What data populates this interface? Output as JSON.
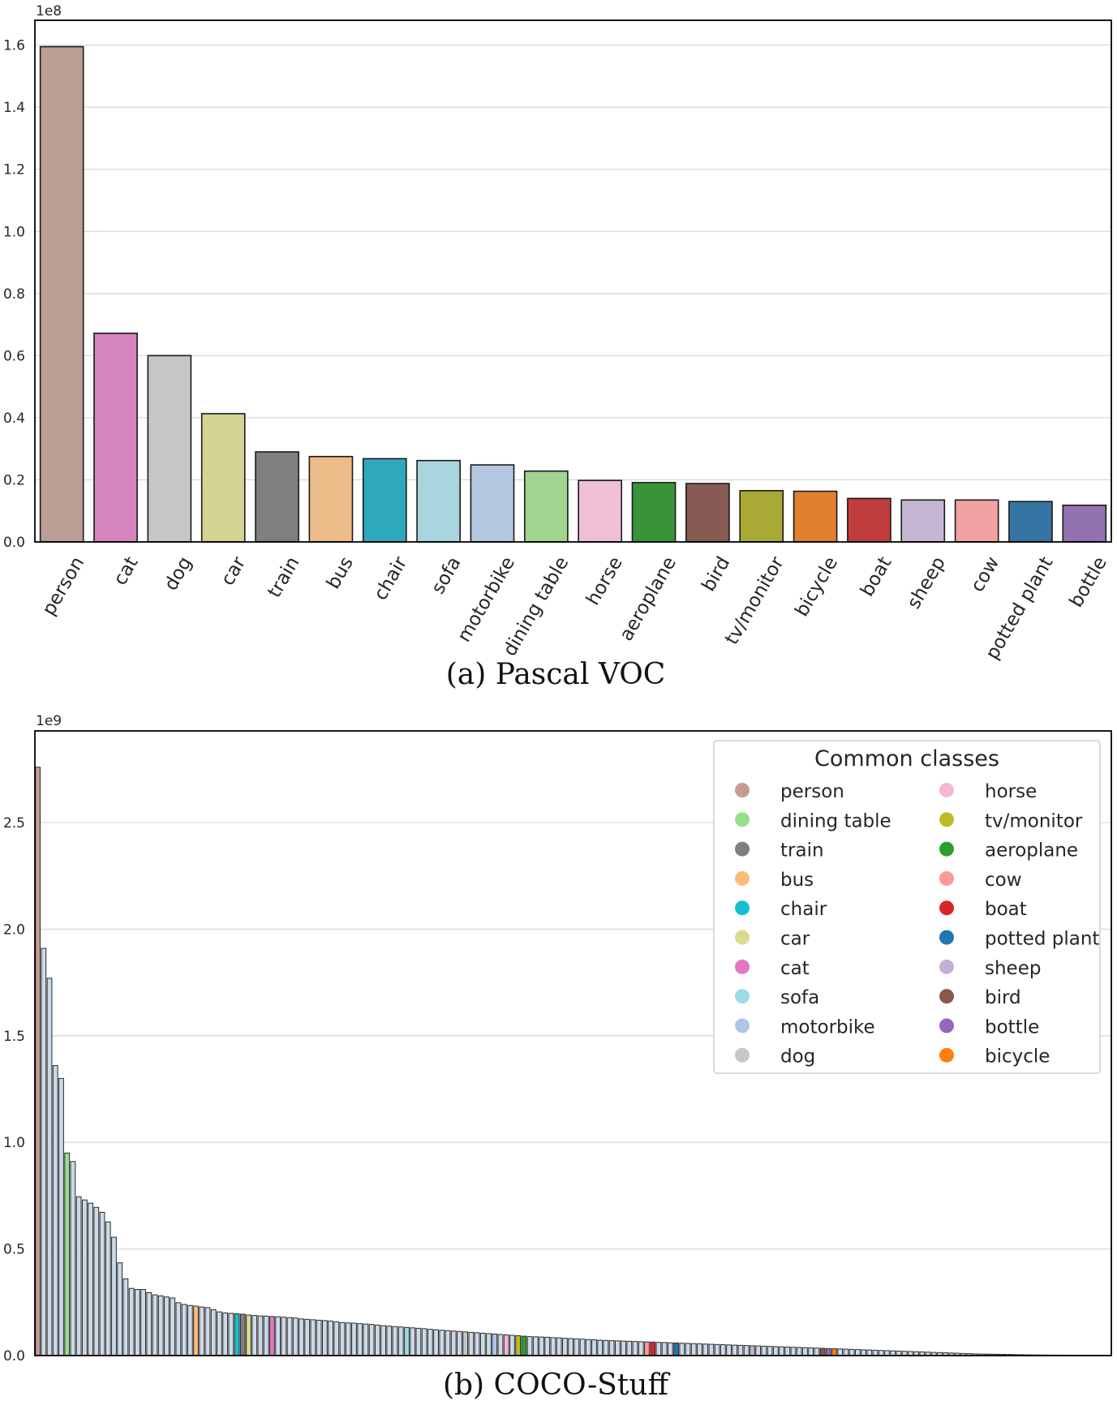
{
  "chart_data": [
    {
      "type": "bar",
      "caption": "(a) Pascal VOC",
      "multiplier_label": "1e8",
      "ylim": [
        0,
        1.68
      ],
      "yticks": [
        0.0,
        0.2,
        0.4,
        0.6,
        0.8,
        1.0,
        1.2,
        1.4,
        1.6
      ],
      "ytick_labels": [
        "0.0",
        "0.2",
        "0.4",
        "0.6",
        "0.8",
        "1.0",
        "1.2",
        "1.4",
        "1.6"
      ],
      "grid": true,
      "categories": [
        "person",
        "cat",
        "dog",
        "car",
        "train",
        "bus",
        "chair",
        "sofa",
        "motorbike",
        "dining table",
        "horse",
        "aeroplane",
        "bird",
        "tv/monitor",
        "bicycle",
        "boat",
        "sheep",
        "cow",
        "potted plant",
        "bottle"
      ],
      "values": [
        1.595,
        0.672,
        0.6,
        0.413,
        0.29,
        0.275,
        0.268,
        0.262,
        0.248,
        0.228,
        0.198,
        0.191,
        0.188,
        0.165,
        0.163,
        0.14,
        0.135,
        0.135,
        0.13,
        0.118
      ],
      "colors": [
        "#bc9d96",
        "#d584be",
        "#c6c6c6",
        "#d4d494",
        "#7f7f7f",
        "#ecbc89",
        "#2ea9bc",
        "#a9d5de",
        "#b5c8e1",
        "#a1d58f",
        "#eebfd5",
        "#399339",
        "#855b53",
        "#a9a935",
        "#e1812f",
        "#c13c3d",
        "#c5b6d3",
        "#f2a2a2",
        "#3574a3",
        "#9272b0"
      ]
    },
    {
      "type": "bar",
      "caption": "(b) COCO-Stuff",
      "multiplier_label": "1e9",
      "ylim": [
        0,
        2.93
      ],
      "yticks": [
        0.0,
        0.5,
        1.0,
        1.5,
        2.0,
        2.5
      ],
      "ytick_labels": [
        "0.0",
        "0.5",
        "1.0",
        "1.5",
        "2.0",
        "2.5"
      ],
      "grid": true,
      "num_categories": 182,
      "x_tick_labels": "none",
      "values": [
        2.76,
        1.91,
        1.77,
        1.36,
        1.3,
        0.95,
        0.91,
        0.745,
        0.73,
        0.715,
        0.695,
        0.672,
        0.627,
        0.555,
        0.435,
        0.36,
        0.315,
        0.31,
        0.31,
        0.295,
        0.285,
        0.28,
        0.275,
        0.27,
        0.248,
        0.24,
        0.235,
        0.232,
        0.228,
        0.225,
        0.215,
        0.205,
        0.2,
        0.198,
        0.196,
        0.194,
        0.19,
        0.188,
        0.186,
        0.185,
        0.183,
        0.182,
        0.18,
        0.178,
        0.176,
        0.172,
        0.17,
        0.168,
        0.166,
        0.164,
        0.162,
        0.158,
        0.155,
        0.153,
        0.152,
        0.15,
        0.148,
        0.146,
        0.143,
        0.14,
        0.138,
        0.136,
        0.134,
        0.132,
        0.13,
        0.128,
        0.126,
        0.123,
        0.121,
        0.119,
        0.117,
        0.115,
        0.113,
        0.111,
        0.109,
        0.107,
        0.105,
        0.103,
        0.101,
        0.099,
        0.097,
        0.095,
        0.093,
        0.091,
        0.089,
        0.088,
        0.087,
        0.086,
        0.084,
        0.083,
        0.081,
        0.08,
        0.078,
        0.077,
        0.075,
        0.074,
        0.072,
        0.071,
        0.07,
        0.069,
        0.068,
        0.067,
        0.066,
        0.065,
        0.064,
        0.063,
        0.062,
        0.061,
        0.06,
        0.059,
        0.058,
        0.057,
        0.056,
        0.055,
        0.054,
        0.053,
        0.052,
        0.051,
        0.05,
        0.049,
        0.048,
        0.047,
        0.046,
        0.045,
        0.044,
        0.043,
        0.042,
        0.041,
        0.04,
        0.039,
        0.038,
        0.037,
        0.036,
        0.035,
        0.034,
        0.033,
        0.032,
        0.031,
        0.03,
        0.029,
        0.028,
        0.027,
        0.026,
        0.025,
        0.024,
        0.023,
        0.022,
        0.021,
        0.02,
        0.019,
        0.018,
        0.017,
        0.016,
        0.015,
        0.014,
        0.013,
        0.012,
        0.011,
        0.01,
        0.009,
        0.008,
        0.0075,
        0.007,
        0.0065,
        0.006,
        0.0055,
        0.005,
        0.0045,
        0.004,
        0.0035,
        0.003,
        0.0028,
        0.0026,
        0.0024,
        0.0022,
        0.002,
        0.0018,
        0.0016,
        0.0014,
        0.0012,
        0.001,
        0.0008
      ],
      "default_color": "#ccd9e6",
      "highlighted_bars": [
        {
          "index": 0,
          "class": "person"
        },
        {
          "index": 5,
          "class": "dining table"
        },
        {
          "index": 27,
          "class": "bus"
        },
        {
          "index": 34,
          "class": "chair"
        },
        {
          "index": 35,
          "class": "train"
        },
        {
          "index": 36,
          "class": "car"
        },
        {
          "index": 40,
          "class": "cat"
        },
        {
          "index": 63,
          "class": "sofa"
        },
        {
          "index": 73,
          "class": "dog"
        },
        {
          "index": 78,
          "class": "motorbike"
        },
        {
          "index": 80,
          "class": "horse"
        },
        {
          "index": 82,
          "class": "tv/monitor"
        },
        {
          "index": 83,
          "class": "aeroplane"
        },
        {
          "index": 104,
          "class": "cow"
        },
        {
          "index": 105,
          "class": "boat"
        },
        {
          "index": 109,
          "class": "potted plant"
        },
        {
          "index": 122,
          "class": "sheep"
        },
        {
          "index": 134,
          "class": "bird"
        },
        {
          "index": 135,
          "class": "bottle"
        },
        {
          "index": 136,
          "class": "bicycle"
        }
      ],
      "legend": {
        "title": "Common classes",
        "placement": "top-right",
        "columns": 2,
        "entries": [
          {
            "label": "person",
            "color": "#c49c94"
          },
          {
            "label": "dining table",
            "color": "#98df8a"
          },
          {
            "label": "train",
            "color": "#7f7f7f"
          },
          {
            "label": "bus",
            "color": "#ffbb78"
          },
          {
            "label": "chair",
            "color": "#17becf"
          },
          {
            "label": "car",
            "color": "#dbdb8d"
          },
          {
            "label": "cat",
            "color": "#e377c2"
          },
          {
            "label": "sofa",
            "color": "#9edae5"
          },
          {
            "label": "motorbike",
            "color": "#aec7e8"
          },
          {
            "label": "dog",
            "color": "#c7c7c7"
          },
          {
            "label": "horse",
            "color": "#f7b6d2"
          },
          {
            "label": "tv/monitor",
            "color": "#bcbd22"
          },
          {
            "label": "aeroplane",
            "color": "#2ca02c"
          },
          {
            "label": "cow",
            "color": "#ff9896"
          },
          {
            "label": "boat",
            "color": "#d62728"
          },
          {
            "label": "potted plant",
            "color": "#1f77b4"
          },
          {
            "label": "sheep",
            "color": "#c5b0d5"
          },
          {
            "label": "bird",
            "color": "#8c564b"
          },
          {
            "label": "bottle",
            "color": "#9467bd"
          },
          {
            "label": "bicycle",
            "color": "#ff7f0e"
          }
        ]
      }
    }
  ]
}
